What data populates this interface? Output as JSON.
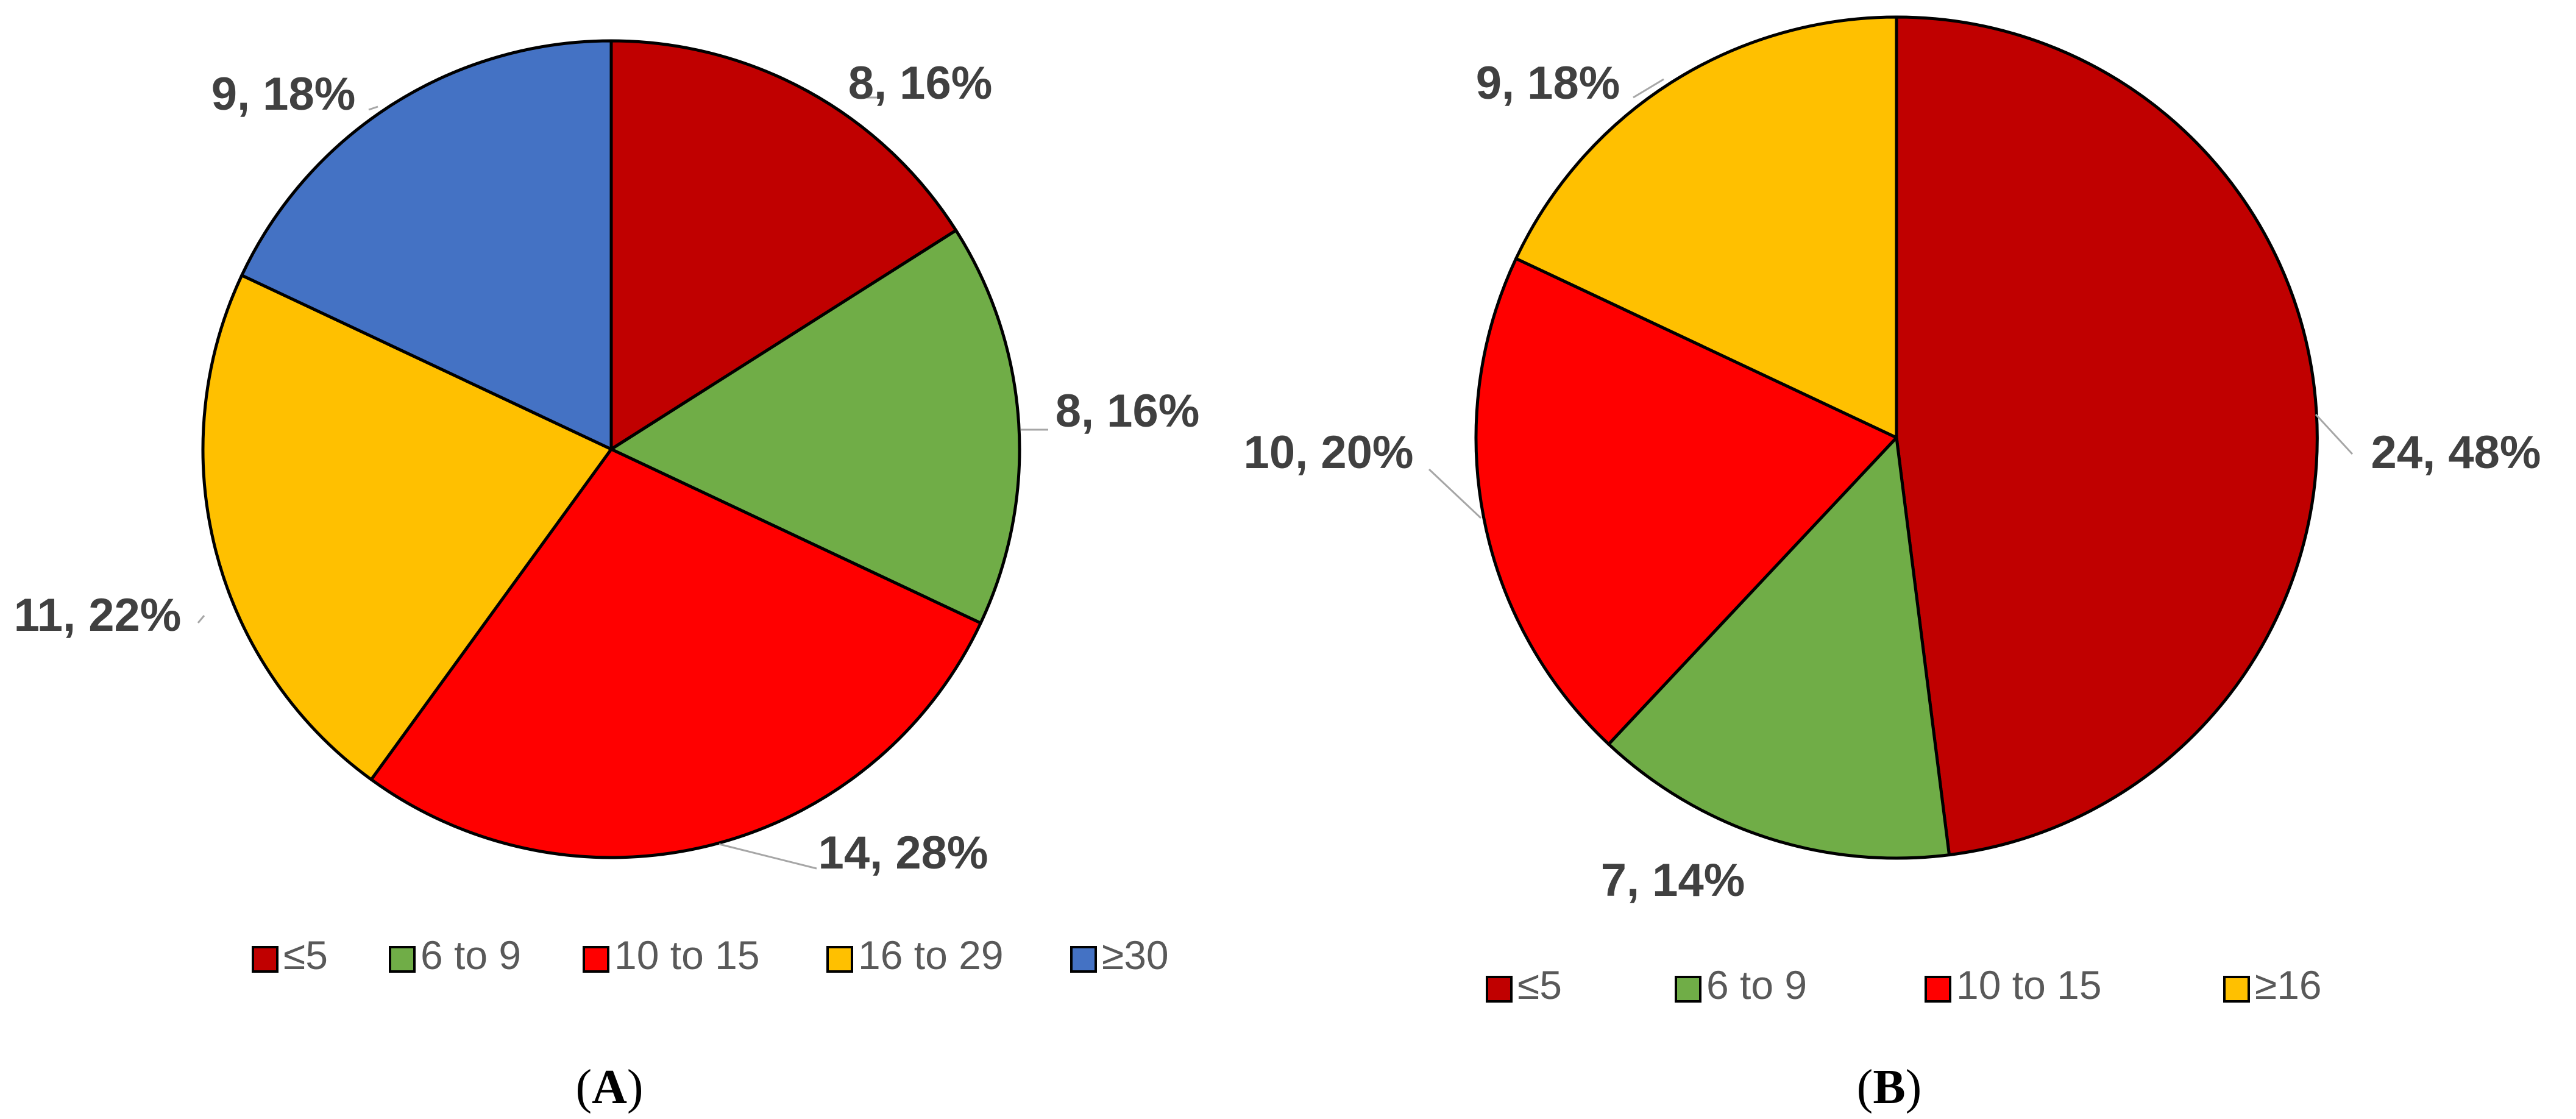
{
  "chart_data": [
    {
      "type": "pie",
      "caption": "A",
      "slices": [
        {
          "label": "≤5",
          "value": 8,
          "percent": "16%",
          "data_label": "8, 16%",
          "color": "#C00000"
        },
        {
          "label": "6 to 9",
          "value": 8,
          "percent": "16%",
          "data_label": "8, 16%",
          "color": "#70AD47"
        },
        {
          "label": "10 to 15",
          "value": 14,
          "percent": "28%",
          "data_label": "14, 28%",
          "color": "#FF0000"
        },
        {
          "label": "16 to 29",
          "value": 11,
          "percent": "22%",
          "data_label": "11, 22%",
          "color": "#FFC000"
        },
        {
          "label": "≥30",
          "value": 9,
          "percent": "18%",
          "data_label": "9, 18%",
          "color": "#4472C4"
        }
      ],
      "legend_position": "bottom"
    },
    {
      "type": "pie",
      "caption": "B",
      "slices": [
        {
          "label": "≤5",
          "value": 24,
          "percent": "48%",
          "data_label": "24, 48%",
          "color": "#C00000"
        },
        {
          "label": "6 to 9",
          "value": 7,
          "percent": "14%",
          "data_label": "7, 14%",
          "color": "#70AD47"
        },
        {
          "label": "10 to 15",
          "value": 10,
          "percent": "20%",
          "data_label": "10, 20%",
          "color": "#FF0000"
        },
        {
          "label": "≥16",
          "value": 9,
          "percent": "18%",
          "data_label": "9, 18%",
          "color": "#FFC000"
        }
      ],
      "legend_position": "bottom"
    }
  ]
}
